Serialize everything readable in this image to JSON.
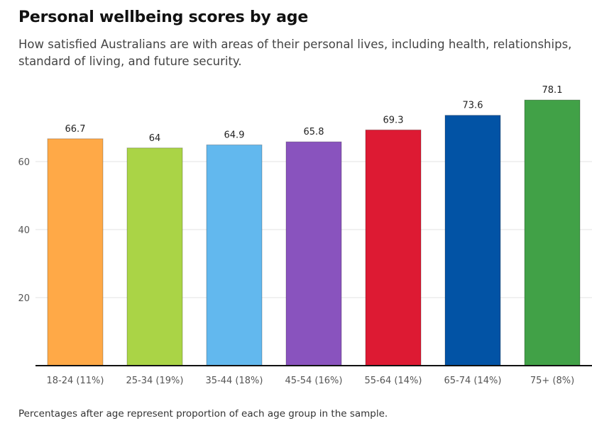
{
  "chart_data": {
    "type": "bar",
    "title": "Personal wellbeing scores by age",
    "subtitle": "How satisfied Australians are with areas of their personal lives, including health, relationships, standard of living, and future security.",
    "footnote": "Percentages after age represent proportion of each age group in the sample.",
    "categories": [
      "18-24 (11%)",
      "25-34 (19%)",
      "35-44 (18%)",
      "45-54 (16%)",
      "55-64 (14%)",
      "65-74 (14%)",
      "75+ (8%)"
    ],
    "values": [
      66.7,
      64,
      64.9,
      65.8,
      69.3,
      73.6,
      78.1
    ],
    "value_labels": [
      "66.7",
      "64",
      "64.9",
      "65.8",
      "69.3",
      "73.6",
      "78.1"
    ],
    "colors": [
      "#FFA947",
      "#AAD446",
      "#62B8EE",
      "#8953BE",
      "#DD1A33",
      "#0253A5",
      "#41A147"
    ],
    "yticks": [
      20,
      40,
      60
    ],
    "ytick_labels": [
      "20",
      "40",
      "60"
    ],
    "ylim": [
      0,
      80
    ],
    "xlabel": "",
    "ylabel": "",
    "grid": true,
    "legend": "none"
  }
}
